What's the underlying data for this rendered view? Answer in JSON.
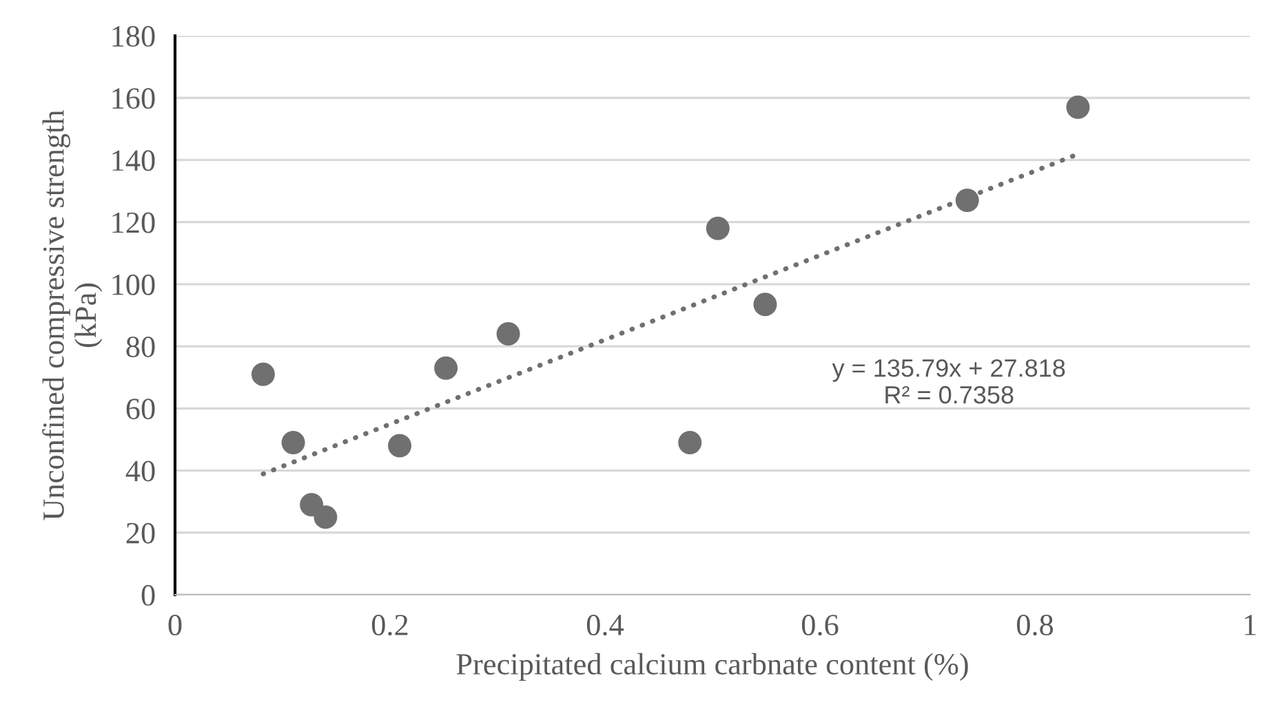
{
  "chart_data": {
    "type": "scatter",
    "xlabel": "Precipitated calcium carbnate content (%)",
    "ylabel": "Unconfined compressive strength\n(kPa)",
    "xlim": [
      0,
      1
    ],
    "xticks": [
      0,
      0.2,
      0.4,
      0.6,
      0.8,
      1
    ],
    "ylim": [
      0,
      180
    ],
    "yticks": [
      0,
      20,
      40,
      60,
      80,
      100,
      120,
      140,
      160,
      180
    ],
    "grid": "y",
    "series": [
      {
        "marker": "circle",
        "color": "#707070",
        "x": [
          0.082,
          0.11,
          0.127,
          0.14,
          0.209,
          0.252,
          0.31,
          0.479,
          0.505,
          0.549,
          0.737,
          0.84
        ],
        "values": [
          71,
          49,
          29,
          25,
          48,
          73,
          84,
          49,
          118,
          93.5,
          127,
          157
        ]
      },
      {
        "type": "line",
        "color": "#707070",
        "line_style": "dotted",
        "x": [
          0.082,
          0.84
        ],
        "values": [
          38.9,
          141.9
        ]
      }
    ],
    "annotations": [
      "y = 135.79x + 27.818\nR² = 0.7358"
    ]
  }
}
